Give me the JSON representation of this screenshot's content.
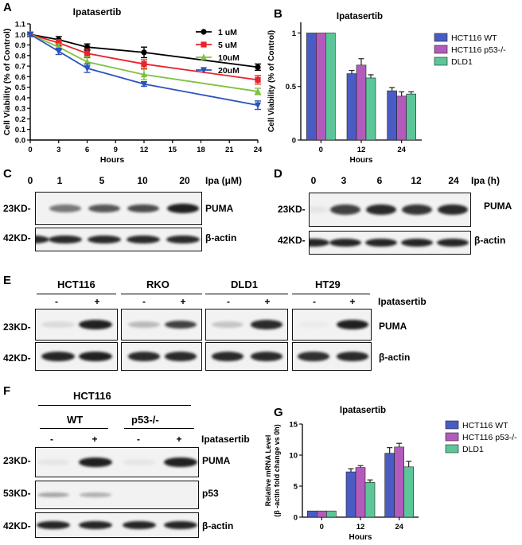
{
  "panels": {
    "A": "A",
    "B": "B",
    "C": "C",
    "D": "D",
    "E": "E",
    "F": "F",
    "G": "G"
  },
  "chart_data": [
    {
      "id": "A",
      "type": "line",
      "title": "Ipatasertib",
      "xlabel": "Hours",
      "ylabel": "Cell Viability (% of Control)",
      "x": [
        0,
        3,
        6,
        12,
        24
      ],
      "xticks": [
        "0",
        "3",
        "6",
        "9",
        "12",
        "15",
        "18",
        "21",
        "24"
      ],
      "yticks": [
        "0.0",
        "0.1",
        "0.2",
        "0.3",
        "0.4",
        "0.5",
        "0.6",
        "0.7",
        "0.8",
        "0.9",
        "1.0",
        "1.1"
      ],
      "xlim": [
        0,
        24
      ],
      "ylim": [
        0,
        1.1
      ],
      "legend": "top-right",
      "series": [
        {
          "name": "1  uM",
          "color": "#000000",
          "marker": "circle",
          "values": [
            1.0,
            0.95,
            0.88,
            0.83,
            0.69
          ],
          "err": [
            0.02,
            0.03,
            0.03,
            0.05,
            0.03
          ]
        },
        {
          "name": "5  uM",
          "color": "#e8232b",
          "marker": "square",
          "values": [
            1.0,
            0.92,
            0.82,
            0.72,
            0.57
          ],
          "err": [
            0.02,
            0.03,
            0.04,
            0.04,
            0.04
          ]
        },
        {
          "name": "10uM",
          "color": "#7ec241",
          "marker": "triangle-up",
          "values": [
            1.0,
            0.88,
            0.74,
            0.62,
            0.46
          ],
          "err": [
            0.02,
            0.03,
            0.05,
            0.05,
            0.03
          ]
        },
        {
          "name": "20uM",
          "color": "#2a52be",
          "marker": "triangle-down",
          "values": [
            1.0,
            0.84,
            0.68,
            0.53,
            0.33
          ],
          "err": [
            0.02,
            0.03,
            0.04,
            0.02,
            0.04
          ]
        }
      ]
    },
    {
      "id": "B",
      "type": "bar",
      "title": "Ipatasertib",
      "xlabel": "Hours",
      "ylabel": "Cell Viability (% of Control)",
      "categories": [
        "0",
        "12",
        "24"
      ],
      "yticks": [
        "0",
        "0.5",
        "1"
      ],
      "ylim": [
        0,
        1.1
      ],
      "legend": "top-right",
      "series": [
        {
          "name": "HCT116 WT",
          "color": "#4a5cc4",
          "values": [
            1.0,
            0.62,
            0.46
          ],
          "err": [
            0,
            0.03,
            0.03
          ]
        },
        {
          "name": "HCT116 p53-/-",
          "color": "#b35bbd",
          "values": [
            1.0,
            0.7,
            0.41
          ],
          "err": [
            0,
            0.06,
            0.04
          ]
        },
        {
          "name": "DLD1",
          "color": "#5cc698",
          "values": [
            1.0,
            0.58,
            0.43
          ],
          "err": [
            0,
            0.03,
            0.02
          ]
        }
      ]
    },
    {
      "id": "G",
      "type": "bar",
      "title": "Ipatasertib",
      "xlabel": "Hours",
      "ylabel": "Relative mRNA Level (β-actin fold change vs 0h)",
      "ylabel_lines": [
        "Relative mRNA Level",
        "(β -actin fold change vs 0h)"
      ],
      "categories": [
        "0",
        "12",
        "24"
      ],
      "yticks": [
        "0",
        "5",
        "10",
        "15"
      ],
      "ylim": [
        0,
        15
      ],
      "legend": "top-right",
      "series": [
        {
          "name": "HCT116 WT",
          "color": "#4a5cc4",
          "values": [
            1.0,
            7.3,
            10.3
          ],
          "err": [
            0,
            0.5,
            0.9
          ]
        },
        {
          "name": "HCT116 p53-/-",
          "color": "#b35bbd",
          "values": [
            1.0,
            8.0,
            11.3
          ],
          "err": [
            0,
            0.3,
            0.6
          ]
        },
        {
          "name": "DLD1",
          "color": "#5cc698",
          "values": [
            1.0,
            5.6,
            8.1
          ],
          "err": [
            0,
            0.4,
            0.9
          ]
        }
      ]
    }
  ],
  "blots": {
    "C": {
      "lanes": [
        "0",
        "1",
        "5",
        "10",
        "20"
      ],
      "treatment": "Ipa (μM)",
      "mw_top": "23KD-",
      "mw_bottom": "42KD-",
      "protein_top": "PUMA",
      "protein_bottom": "β-actin",
      "puma_intensity": [
        0.0,
        0.55,
        0.7,
        0.75,
        0.95
      ]
    },
    "D": {
      "lanes": [
        "0",
        "3",
        "6",
        "12",
        "24"
      ],
      "treatment": "Ipa (h)",
      "mw_top": "23KD-",
      "mw_bottom": "42KD-",
      "protein_top": "PUMA",
      "protein_bottom": "β-actin",
      "puma_intensity": [
        0.05,
        0.8,
        0.9,
        0.85,
        0.9
      ]
    },
    "E": {
      "cell_lines": [
        "HCT116",
        "RKO",
        "DLD1",
        "HT29"
      ],
      "minus": "-",
      "plus": "+",
      "treatment": "Ipatasertib",
      "mw_top": "23KD-",
      "mw_bottom": "42KD-",
      "protein_top": "PUMA",
      "protein_bottom": "β-actin"
    },
    "F": {
      "cell_line": "HCT116",
      "groups": [
        "WT",
        "p53-/-"
      ],
      "minus": "-",
      "plus": "+",
      "treatment": "Ipatasertib",
      "mw": [
        "23KD-",
        "53KD-",
        "42KD-"
      ],
      "proteins": [
        "PUMA",
        "p53",
        "β-actin"
      ]
    }
  }
}
